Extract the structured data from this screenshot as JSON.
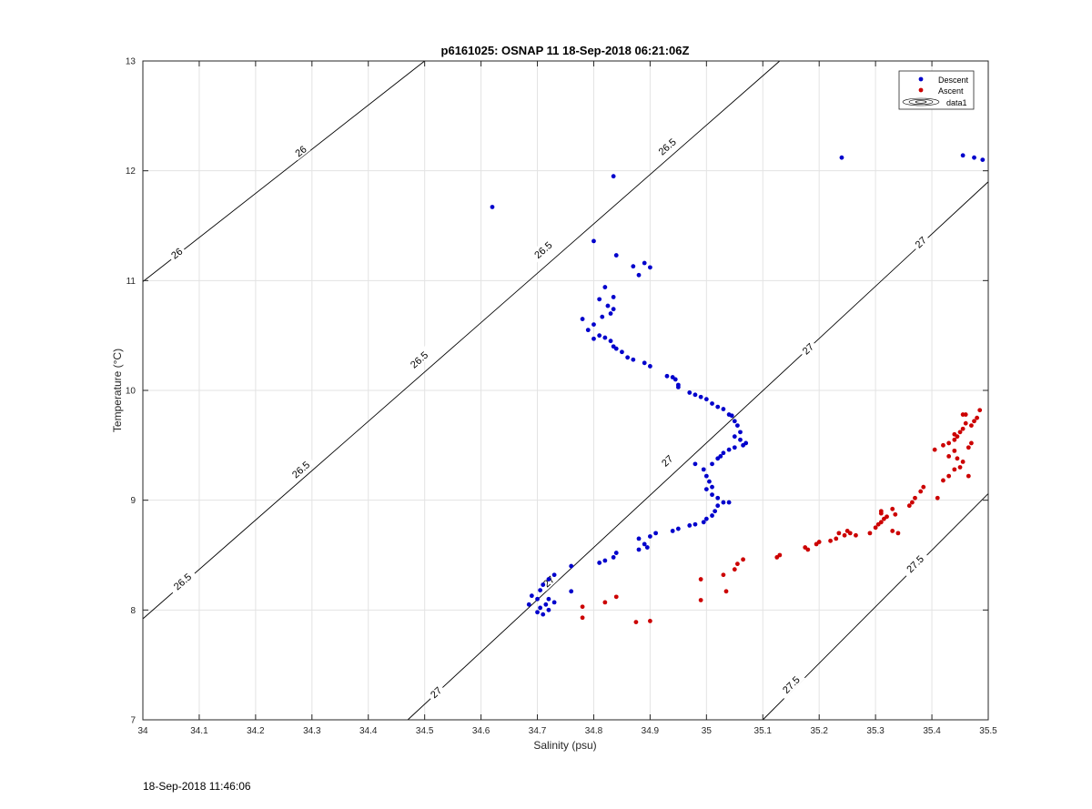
{
  "footer_timestamp": "18-Sep-2018 11:46:06",
  "chart_data": {
    "type": "scatter",
    "title": "p6161025: OSNAP 11 18-Sep-2018 06:21:06Z",
    "xlabel": "Salinity (psu)",
    "ylabel": "Temperature (°C)",
    "xlim": [
      34,
      35.5
    ],
    "ylim": [
      7,
      13
    ],
    "grid": true,
    "legend_position": "top-right",
    "x_ticks": [
      "34",
      "34.1",
      "34.2",
      "34.3",
      "34.4",
      "34.5",
      "34.6",
      "34.7",
      "34.8",
      "34.9",
      "35",
      "35.1",
      "35.2",
      "35.3",
      "35.4",
      "35.5"
    ],
    "y_ticks": [
      "7",
      "8",
      "9",
      "10",
      "11",
      "12",
      "13"
    ],
    "legend": [
      {
        "label": "Descent",
        "color": "#0000cc",
        "marker": "dot"
      },
      {
        "label": "Ascent",
        "color": "#cc0000",
        "marker": "dot"
      },
      {
        "label": "data1",
        "color": "#000000",
        "marker": "contour"
      }
    ],
    "contours": [
      {
        "level": "26",
        "points": [
          [
            34,
            10.99
          ],
          [
            34.5,
            13.0
          ]
        ],
        "labels": [
          {
            "x": 34.06,
            "y": 11.25
          },
          {
            "x": 34.28,
            "y": 12.18
          }
        ]
      },
      {
        "level": "26.5",
        "points": [
          [
            34,
            7.92
          ],
          [
            35.13,
            13.0
          ]
        ],
        "labels": [
          {
            "x": 34.07,
            "y": 8.26
          },
          {
            "x": 34.28,
            "y": 9.28
          },
          {
            "x": 34.49,
            "y": 10.28
          },
          {
            "x": 34.71,
            "y": 11.28
          },
          {
            "x": 34.93,
            "y": 12.22
          }
        ]
      },
      {
        "level": "27",
        "points": [
          [
            34.47,
            7.0
          ],
          [
            35.5,
            11.9
          ]
        ],
        "labels": [
          {
            "x": 34.52,
            "y": 7.25
          },
          {
            "x": 34.72,
            "y": 8.26
          },
          {
            "x": 34.93,
            "y": 9.36
          },
          {
            "x": 35.18,
            "y": 10.38
          },
          {
            "x": 35.38,
            "y": 11.35
          }
        ]
      },
      {
        "level": "27.5",
        "points": [
          [
            35.1,
            7.0
          ],
          [
            35.5,
            9.06
          ]
        ],
        "labels": [
          {
            "x": 35.15,
            "y": 7.32
          },
          {
            "x": 35.37,
            "y": 8.42
          }
        ]
      }
    ],
    "series": [
      {
        "name": "Descent",
        "color": "#0000cc",
        "points": [
          [
            34.62,
            11.67
          ],
          [
            34.835,
            11.95
          ],
          [
            35.24,
            12.12
          ],
          [
            35.455,
            12.14
          ],
          [
            35.475,
            12.12
          ],
          [
            35.49,
            12.1
          ],
          [
            34.8,
            11.36
          ],
          [
            34.84,
            11.23
          ],
          [
            34.89,
            11.16
          ],
          [
            34.9,
            11.12
          ],
          [
            34.87,
            11.13
          ],
          [
            34.88,
            11.05
          ],
          [
            34.82,
            10.94
          ],
          [
            34.835,
            10.85
          ],
          [
            34.81,
            10.83
          ],
          [
            34.825,
            10.77
          ],
          [
            34.835,
            10.74
          ],
          [
            34.83,
            10.7
          ],
          [
            34.815,
            10.67
          ],
          [
            34.78,
            10.65
          ],
          [
            34.8,
            10.6
          ],
          [
            34.79,
            10.55
          ],
          [
            34.81,
            10.5
          ],
          [
            34.8,
            10.47
          ],
          [
            34.82,
            10.48
          ],
          [
            34.83,
            10.45
          ],
          [
            34.835,
            10.4
          ],
          [
            34.84,
            10.38
          ],
          [
            34.85,
            10.35
          ],
          [
            34.86,
            10.3
          ],
          [
            34.87,
            10.28
          ],
          [
            34.89,
            10.25
          ],
          [
            34.9,
            10.22
          ],
          [
            34.93,
            10.13
          ],
          [
            34.94,
            10.12
          ],
          [
            34.945,
            10.1
          ],
          [
            34.95,
            10.05
          ],
          [
            34.95,
            10.03
          ],
          [
            34.97,
            9.98
          ],
          [
            34.98,
            9.96
          ],
          [
            34.99,
            9.94
          ],
          [
            35.0,
            9.92
          ],
          [
            35.01,
            9.88
          ],
          [
            35.02,
            9.85
          ],
          [
            35.03,
            9.83
          ],
          [
            35.04,
            9.78
          ],
          [
            35.045,
            9.77
          ],
          [
            35.05,
            9.72
          ],
          [
            35.055,
            9.68
          ],
          [
            35.06,
            9.62
          ],
          [
            35.05,
            9.58
          ],
          [
            35.06,
            9.55
          ],
          [
            35.07,
            9.52
          ],
          [
            35.065,
            9.5
          ],
          [
            35.05,
            9.48
          ],
          [
            35.04,
            9.46
          ],
          [
            35.03,
            9.43
          ],
          [
            35.025,
            9.4
          ],
          [
            35.02,
            9.38
          ],
          [
            35.01,
            9.33
          ],
          [
            34.98,
            9.33
          ],
          [
            34.995,
            9.28
          ],
          [
            35.0,
            9.22
          ],
          [
            35.005,
            9.17
          ],
          [
            35.01,
            9.12
          ],
          [
            35.0,
            9.1
          ],
          [
            35.01,
            9.05
          ],
          [
            35.02,
            9.02
          ],
          [
            35.03,
            8.98
          ],
          [
            35.04,
            8.98
          ],
          [
            35.02,
            8.95
          ],
          [
            35.015,
            8.9
          ],
          [
            35.01,
            8.86
          ],
          [
            35.0,
            8.83
          ],
          [
            34.995,
            8.8
          ],
          [
            34.98,
            8.78
          ],
          [
            34.97,
            8.77
          ],
          [
            34.95,
            8.74
          ],
          [
            34.94,
            8.72
          ],
          [
            34.91,
            8.7
          ],
          [
            34.9,
            8.67
          ],
          [
            34.88,
            8.65
          ],
          [
            34.89,
            8.6
          ],
          [
            34.895,
            8.57
          ],
          [
            34.88,
            8.55
          ],
          [
            34.84,
            8.52
          ],
          [
            34.835,
            8.48
          ],
          [
            34.82,
            8.45
          ],
          [
            34.81,
            8.43
          ],
          [
            34.76,
            8.4
          ],
          [
            34.73,
            8.32
          ],
          [
            34.72,
            8.28
          ],
          [
            34.71,
            8.23
          ],
          [
            34.705,
            8.18
          ],
          [
            34.69,
            8.13
          ],
          [
            34.7,
            8.1
          ],
          [
            34.76,
            8.17
          ],
          [
            34.72,
            8.1
          ],
          [
            34.73,
            8.07
          ],
          [
            34.715,
            8.05
          ],
          [
            34.685,
            8.05
          ],
          [
            34.705,
            8.02
          ],
          [
            34.72,
            8.0
          ],
          [
            34.7,
            7.98
          ],
          [
            34.71,
            7.96
          ]
        ]
      },
      {
        "name": "Ascent",
        "color": "#cc0000",
        "points": [
          [
            34.78,
            8.03
          ],
          [
            34.78,
            7.93
          ],
          [
            34.82,
            8.07
          ],
          [
            34.84,
            8.12
          ],
          [
            34.875,
            7.89
          ],
          [
            34.9,
            7.9
          ],
          [
            34.99,
            8.28
          ],
          [
            34.99,
            8.09
          ],
          [
            35.03,
            8.32
          ],
          [
            35.035,
            8.17
          ],
          [
            35.05,
            8.37
          ],
          [
            35.055,
            8.42
          ],
          [
            35.065,
            8.46
          ],
          [
            35.125,
            8.48
          ],
          [
            35.13,
            8.5
          ],
          [
            35.175,
            8.57
          ],
          [
            35.18,
            8.55
          ],
          [
            35.195,
            8.6
          ],
          [
            35.2,
            8.62
          ],
          [
            35.22,
            8.63
          ],
          [
            35.23,
            8.65
          ],
          [
            35.235,
            8.7
          ],
          [
            35.245,
            8.68
          ],
          [
            35.25,
            8.72
          ],
          [
            35.255,
            8.7
          ],
          [
            35.265,
            8.68
          ],
          [
            35.29,
            8.7
          ],
          [
            35.3,
            8.75
          ],
          [
            35.305,
            8.78
          ],
          [
            35.31,
            8.8
          ],
          [
            35.315,
            8.83
          ],
          [
            35.32,
            8.85
          ],
          [
            35.31,
            8.88
          ],
          [
            35.31,
            8.9
          ],
          [
            35.33,
            8.72
          ],
          [
            35.34,
            8.7
          ],
          [
            35.335,
            8.87
          ],
          [
            35.33,
            8.92
          ],
          [
            35.36,
            8.95
          ],
          [
            35.365,
            8.98
          ],
          [
            35.37,
            9.02
          ],
          [
            35.38,
            9.08
          ],
          [
            35.385,
            9.12
          ],
          [
            35.41,
            9.02
          ],
          [
            35.42,
            9.18
          ],
          [
            35.43,
            9.22
          ],
          [
            35.44,
            9.28
          ],
          [
            35.45,
            9.3
          ],
          [
            35.455,
            9.35
          ],
          [
            35.465,
            9.22
          ],
          [
            35.445,
            9.38
          ],
          [
            35.43,
            9.4
          ],
          [
            35.44,
            9.45
          ],
          [
            35.405,
            9.46
          ],
          [
            35.42,
            9.5
          ],
          [
            35.43,
            9.52
          ],
          [
            35.44,
            9.55
          ],
          [
            35.445,
            9.58
          ],
          [
            35.45,
            9.62
          ],
          [
            35.455,
            9.65
          ],
          [
            35.46,
            9.7
          ],
          [
            35.47,
            9.68
          ],
          [
            35.475,
            9.72
          ],
          [
            35.48,
            9.75
          ],
          [
            35.46,
            9.78
          ],
          [
            35.455,
            9.78
          ],
          [
            35.485,
            9.82
          ],
          [
            35.47,
            9.52
          ],
          [
            35.465,
            9.48
          ],
          [
            35.44,
            9.6
          ]
        ]
      }
    ]
  }
}
